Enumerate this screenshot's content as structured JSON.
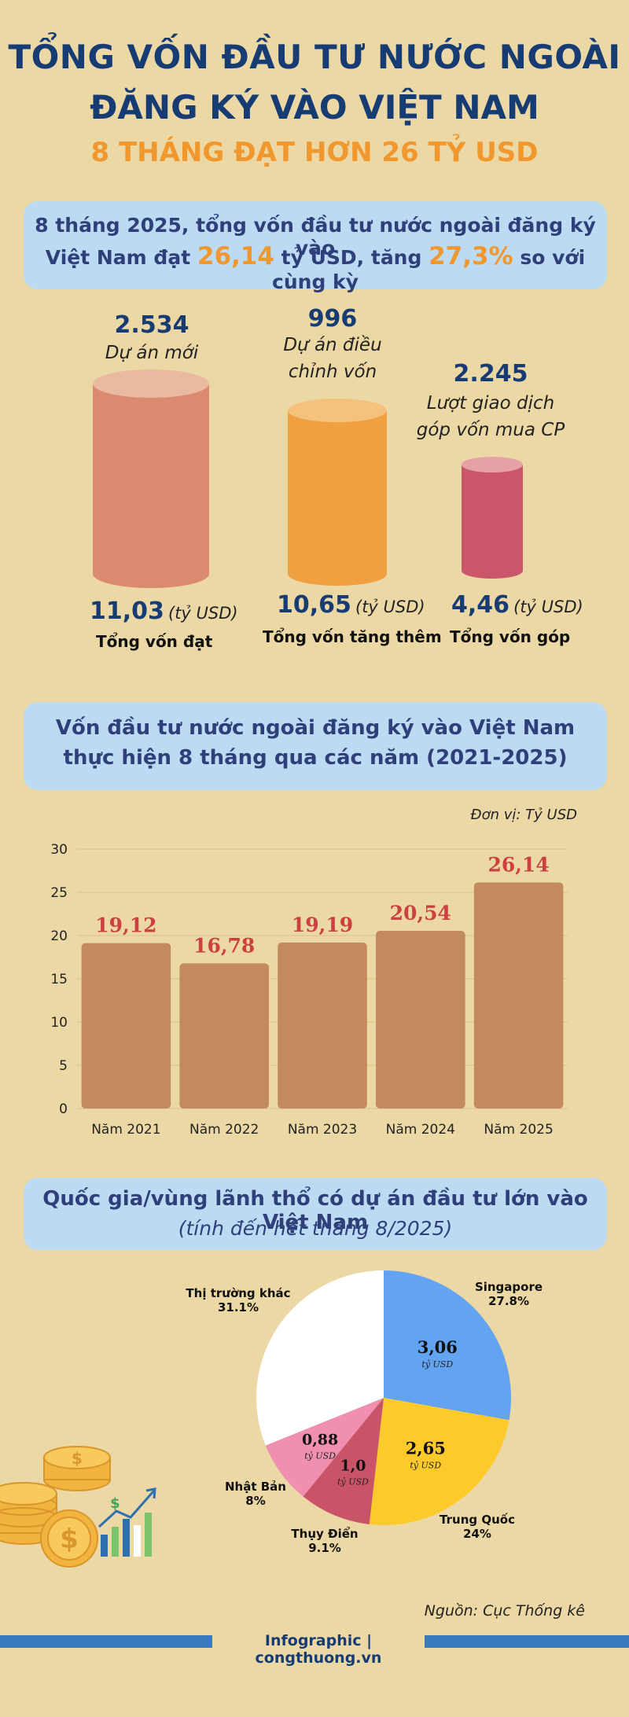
{
  "header": {
    "title_line1": "TỔNG VỐN ĐẦU TƯ NƯỚC NGOÀI",
    "title_line2": "ĐĂNG KÝ VÀO VIỆT NAM",
    "subtitle": "8 THÁNG ĐẠT HƠN 26 TỶ USD"
  },
  "summary": {
    "line1": "8 tháng 2025, tổng vốn đầu tư nước ngoài đăng ký vào",
    "line2_a": "Việt Nam đạt",
    "value": "26,14",
    "line2_b": "tỷ USD, tăng",
    "percent": "27,3%",
    "line2_c": "so với cùng kỳ"
  },
  "stats": [
    {
      "count": "2.534",
      "label1": "Dự án mới",
      "label2": "",
      "value": "11,03",
      "unit": "(tỷ USD)",
      "caption": "Tổng vốn đạt",
      "color": "#da8a6f",
      "top_color": "#e9b9a0"
    },
    {
      "count": "996",
      "label1": "Dự án điều",
      "label2": "chỉnh vốn",
      "value": "10,65",
      "unit": "(tỷ USD)",
      "caption": "Tổng vốn tăng thêm",
      "color": "#f0a040",
      "top_color": "#f5c27e"
    },
    {
      "count": "2.245",
      "label1": "Lượt giao dịch",
      "label2": "góp vốn mua CP",
      "value": "4,46",
      "unit": "(tỷ USD)",
      "caption": "Tổng vốn góp",
      "color": "#c9566a",
      "top_color": "#e6a1a6"
    }
  ],
  "section2": {
    "title_line1": "Vốn đầu tư nước ngoài đăng ký vào Việt Nam",
    "title_line2": "thực hiện 8 tháng qua các năm (2021-2025)",
    "unit_note": "Đơn vị: Tỷ USD"
  },
  "section3": {
    "title_line1": "Quốc gia/vùng lãnh thổ có dự án đầu tư lớn vào Việt Nam",
    "title_line2": "(tính đến hết tháng 8/2025)"
  },
  "chart_data": [
    {
      "type": "bar",
      "categories": [
        "Năm 2021",
        "Năm 2022",
        "Năm 2023",
        "Năm 2024",
        "Năm 2025"
      ],
      "values": [
        19.12,
        16.78,
        19.19,
        20.54,
        26.14
      ],
      "data_labels": [
        "19,12",
        "16,78",
        "19,19",
        "20,54",
        "26,14"
      ],
      "y_ticks": [
        0,
        5,
        10,
        15,
        20,
        25,
        30
      ],
      "ylim": [
        0,
        30
      ],
      "grid": true,
      "bar_color": "#c48a5f",
      "label_color": "#cc4040"
    },
    {
      "type": "pie",
      "slices": [
        {
          "name": "Singapore",
          "pct_label": "27.8%",
          "value": 27.8,
          "amount": "3,06",
          "unit": "tỷ USD",
          "color": "#62a3f2"
        },
        {
          "name": "Trung Quốc",
          "pct_label": "24%",
          "value": 24,
          "amount": "2,65",
          "unit": "tỷ USD",
          "color": "#fcca2a"
        },
        {
          "name": "Thụy Điển",
          "pct_label": "9.1%",
          "value": 9.1,
          "amount": "1,0",
          "unit": "tỷ USD",
          "color": "#c95468"
        },
        {
          "name": "Nhật Bản",
          "pct_label": "8%",
          "value": 8,
          "amount": "0,88",
          "unit": "tỷ USD",
          "color": "#f08fb0"
        },
        {
          "name": "Thị trường khác",
          "pct_label": "31.1%",
          "value": 31.1,
          "amount": "",
          "unit": "",
          "color": "#ffffff"
        }
      ]
    }
  ],
  "footer": {
    "source": "Nguồn: Cục Thống kê",
    "credit": "Infographic | congthuong.vn"
  }
}
